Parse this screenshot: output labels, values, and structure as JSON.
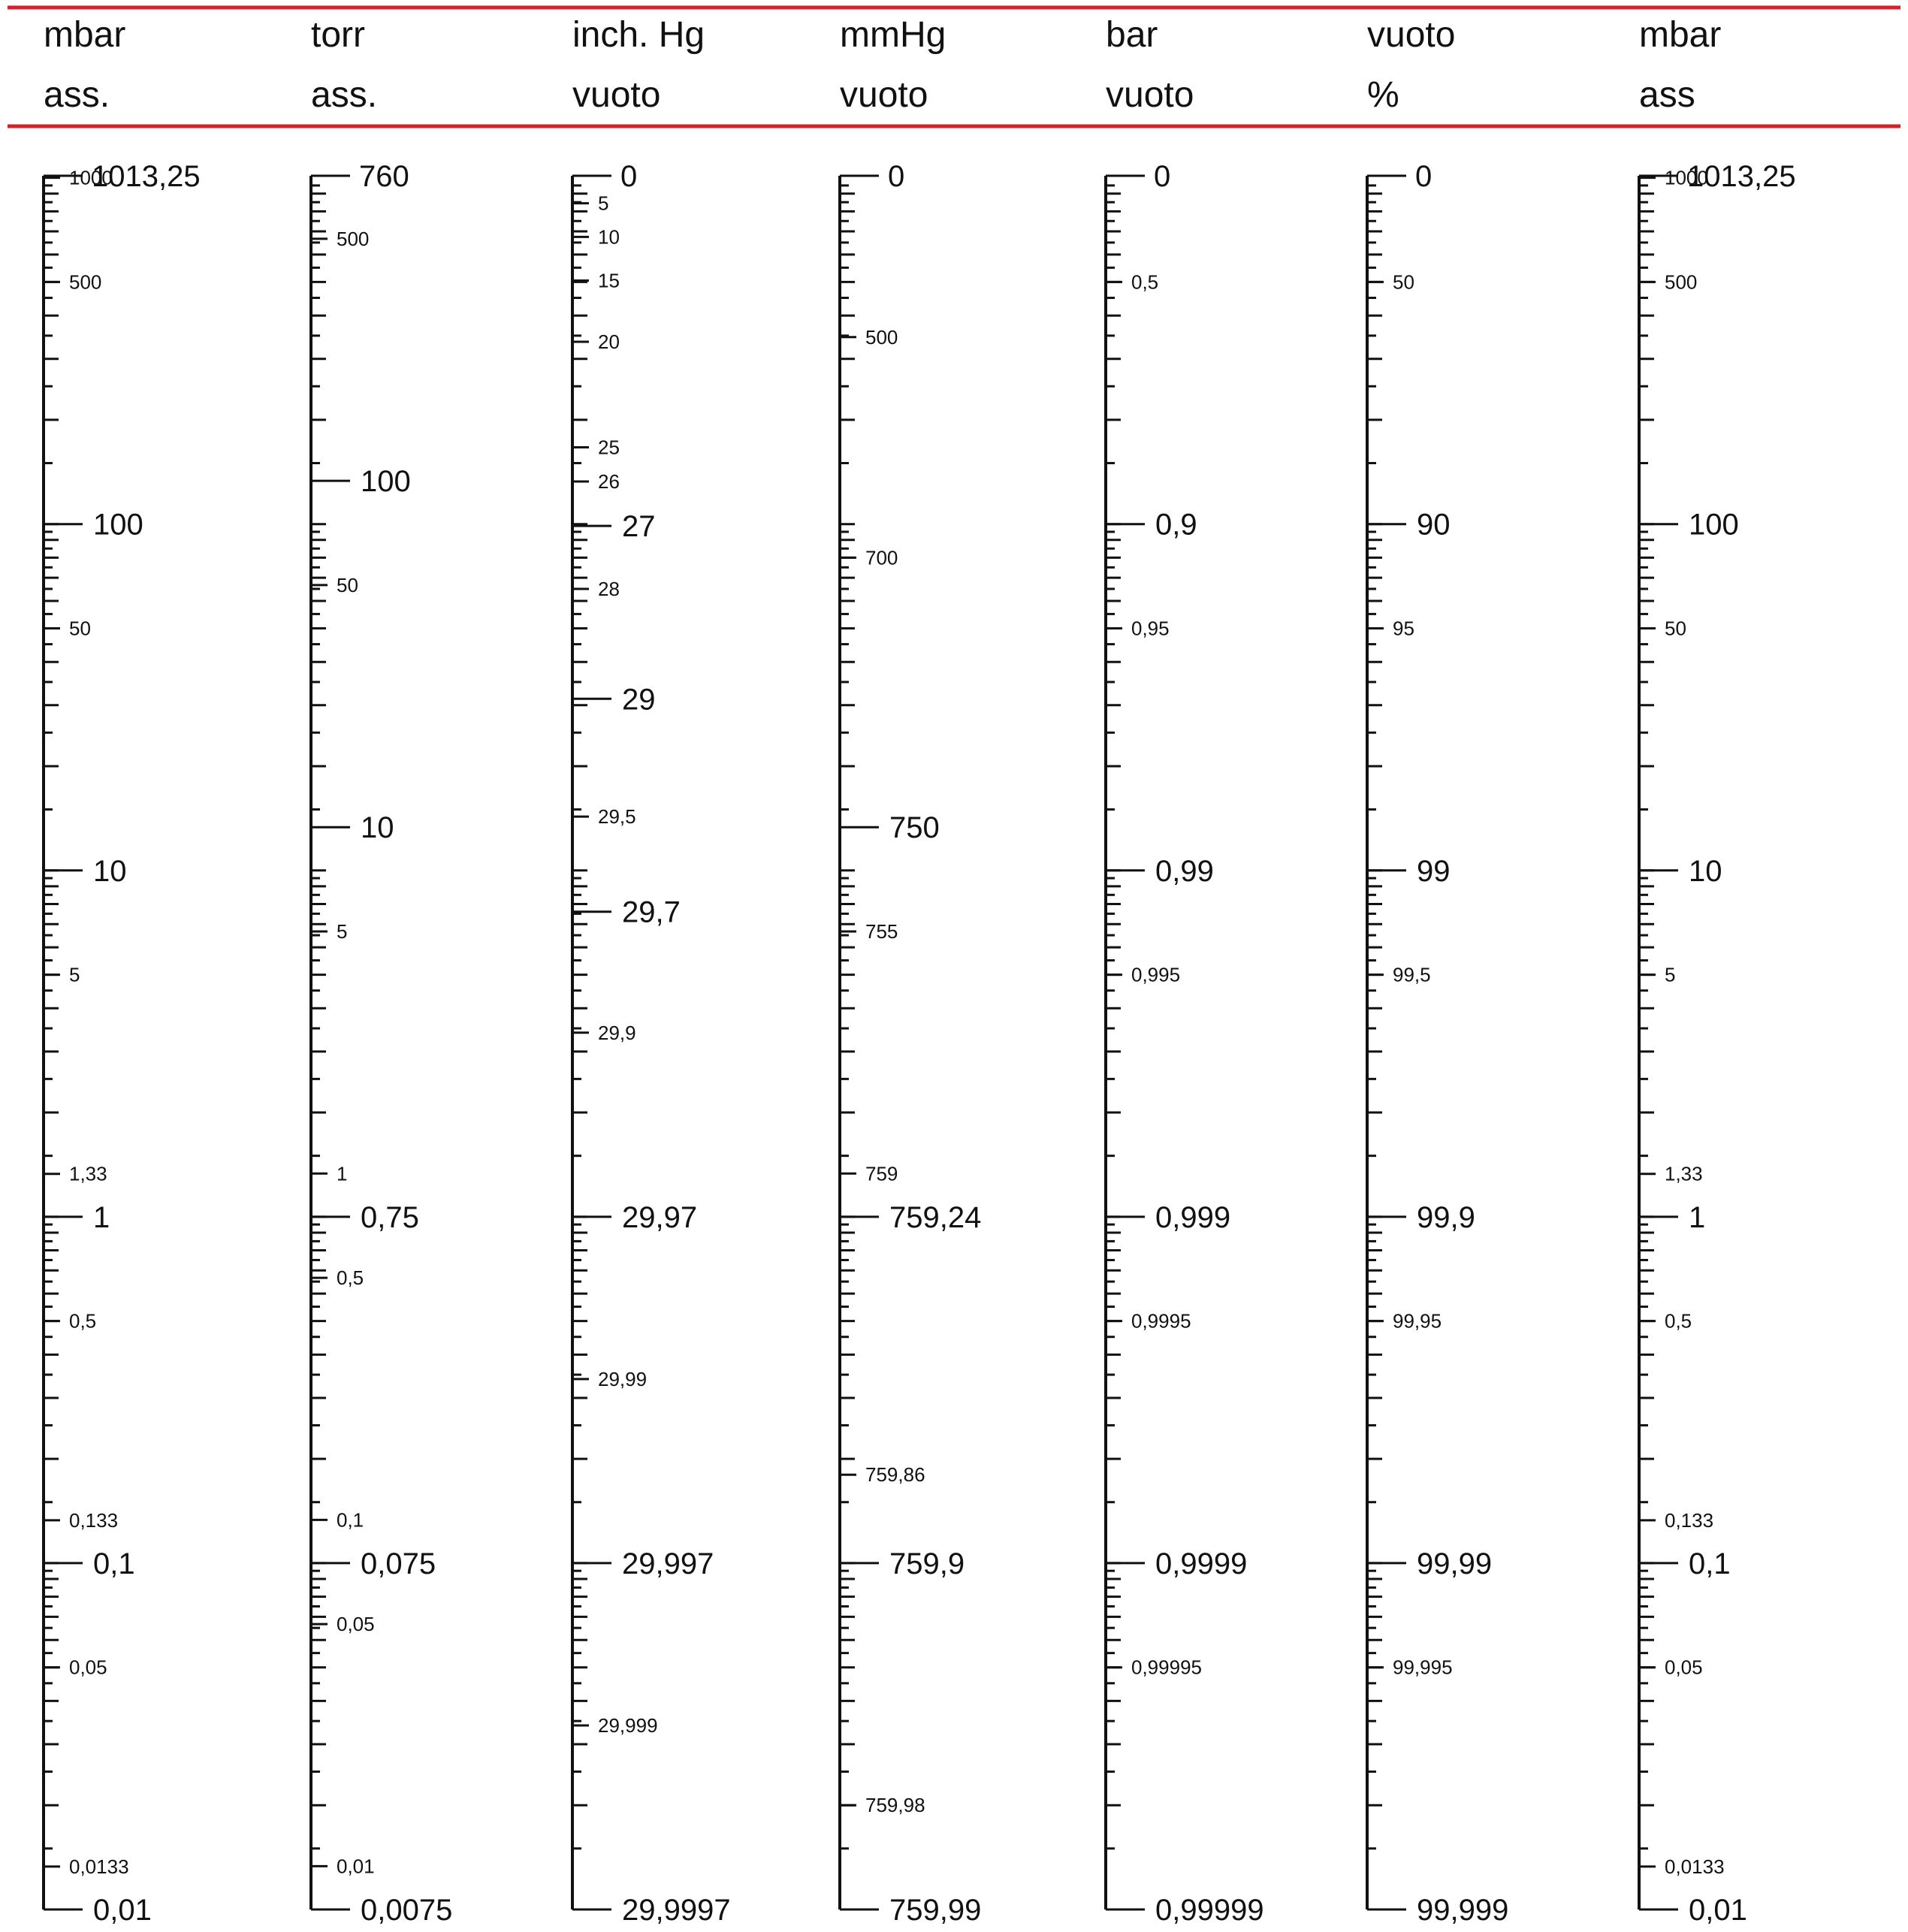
{
  "colors": {
    "rule": "#d6202a",
    "ink": "#111111"
  },
  "chart_data": {
    "type": "nomogram",
    "scales": [
      {
        "id": "mbar-abs-left",
        "header": [
          "mbar",
          "ass."
        ],
        "top_label": "1013,25",
        "major": [
          {
            "label": "100",
            "mbar": 100
          },
          {
            "label": "10",
            "mbar": 10
          },
          {
            "label": "1",
            "mbar": 1
          },
          {
            "label": "0,1",
            "mbar": 0.1
          },
          {
            "label": "0,01",
            "mbar": 0.01
          }
        ],
        "minor": [
          {
            "label": "1000",
            "mbar": 1000
          },
          {
            "label": "500",
            "mbar": 500
          },
          {
            "label": "50",
            "mbar": 50
          },
          {
            "label": "5",
            "mbar": 5
          },
          {
            "label": "1,33",
            "mbar": 1.33
          },
          {
            "label": "0,5",
            "mbar": 0.5
          },
          {
            "label": "0,133",
            "mbar": 0.133
          },
          {
            "label": "0,05",
            "mbar": 0.05
          },
          {
            "label": "0,0133",
            "mbar": 0.0133
          }
        ]
      },
      {
        "id": "torr-abs",
        "header": [
          "torr",
          "ass."
        ],
        "top_label": "760",
        "major": [
          {
            "label": "100",
            "mbar": 133.32
          },
          {
            "label": "10",
            "mbar": 13.332
          },
          {
            "label": "0,75",
            "mbar": 1
          },
          {
            "label": "0,075",
            "mbar": 0.1
          },
          {
            "label": "0,0075",
            "mbar": 0.01
          }
        ],
        "minor": [
          {
            "label": "500",
            "mbar": 666.6
          },
          {
            "label": "50",
            "mbar": 66.66
          },
          {
            "label": "5",
            "mbar": 6.666
          },
          {
            "label": "1",
            "mbar": 1.3332
          },
          {
            "label": "0,5",
            "mbar": 0.6666
          },
          {
            "label": "0,1",
            "mbar": 0.13332
          },
          {
            "label": "0,05",
            "mbar": 0.06666
          },
          {
            "label": "0,01",
            "mbar": 0.013332
          }
        ]
      },
      {
        "id": "inch-hg-vacuum",
        "header": [
          "inch. Hg",
          "vuoto"
        ],
        "top_label": "0",
        "major": [
          {
            "label": "27",
            "mbar": 98.8
          },
          {
            "label": "29",
            "mbar": 31.3
          },
          {
            "label": "29,7",
            "mbar": 7.6
          },
          {
            "label": "29,97",
            "mbar": 1
          },
          {
            "label": "29,997",
            "mbar": 0.1
          },
          {
            "label": "29,9997",
            "mbar": 0.01
          }
        ],
        "minor": [
          {
            "label": "5",
            "mbar": 844
          },
          {
            "label": "10",
            "mbar": 675
          },
          {
            "label": "15",
            "mbar": 505
          },
          {
            "label": "20",
            "mbar": 336
          },
          {
            "label": "25",
            "mbar": 166.6
          },
          {
            "label": "26",
            "mbar": 132.7
          },
          {
            "label": "28",
            "mbar": 65
          },
          {
            "label": "29,5",
            "mbar": 14.3
          },
          {
            "label": "29,9",
            "mbar": 3.4
          },
          {
            "label": "29,99",
            "mbar": 0.34
          },
          {
            "label": "29,999",
            "mbar": 0.034
          }
        ]
      },
      {
        "id": "mmhg-vacuum",
        "header": [
          "mmHg",
          "vuoto"
        ],
        "top_label": "0",
        "major": [
          {
            "label": "750",
            "mbar": 13.33
          },
          {
            "label": "759,24",
            "mbar": 1
          },
          {
            "label": "759,9",
            "mbar": 0.1
          },
          {
            "label": "759,99",
            "mbar": 0.01
          }
        ],
        "minor": [
          {
            "label": "500",
            "mbar": 346.6
          },
          {
            "label": "700",
            "mbar": 79.99
          },
          {
            "label": "755",
            "mbar": 6.666
          },
          {
            "label": "759",
            "mbar": 1.3332
          },
          {
            "label": "759,86",
            "mbar": 0.18
          },
          {
            "label": "759,98",
            "mbar": 0.02
          }
        ]
      },
      {
        "id": "bar-vacuum",
        "header": [
          "bar",
          "vuoto"
        ],
        "top_label": "0",
        "major": [
          {
            "label": "0,9",
            "mbar": 100
          },
          {
            "label": "0,99",
            "mbar": 10
          },
          {
            "label": "0,999",
            "mbar": 1
          },
          {
            "label": "0,9999",
            "mbar": 0.1
          },
          {
            "label": "0,99999",
            "mbar": 0.01
          }
        ],
        "minor": [
          {
            "label": "0,5",
            "mbar": 500
          },
          {
            "label": "0,95",
            "mbar": 50
          },
          {
            "label": "0,995",
            "mbar": 5
          },
          {
            "label": "0,9995",
            "mbar": 0.5
          },
          {
            "label": "0,99995",
            "mbar": 0.05
          }
        ]
      },
      {
        "id": "vacuum-percent",
        "header": [
          "vuoto",
          "%"
        ],
        "top_label": "0",
        "major": [
          {
            "label": "90",
            "mbar": 100
          },
          {
            "label": "99",
            "mbar": 10
          },
          {
            "label": "99,9",
            "mbar": 1
          },
          {
            "label": "99,99",
            "mbar": 0.1
          },
          {
            "label": "99,999",
            "mbar": 0.01
          }
        ],
        "minor": [
          {
            "label": "50",
            "mbar": 500
          },
          {
            "label": "95",
            "mbar": 50
          },
          {
            "label": "99,5",
            "mbar": 5
          },
          {
            "label": "99,95",
            "mbar": 0.5
          },
          {
            "label": "99,995",
            "mbar": 0.05
          }
        ]
      },
      {
        "id": "mbar-abs-right",
        "header": [
          "mbar",
          "ass"
        ],
        "top_label": "1013,25",
        "major": [
          {
            "label": "100",
            "mbar": 100
          },
          {
            "label": "10",
            "mbar": 10
          },
          {
            "label": "1",
            "mbar": 1
          },
          {
            "label": "0,1",
            "mbar": 0.1
          },
          {
            "label": "0,01",
            "mbar": 0.01
          }
        ],
        "minor": [
          {
            "label": "1000",
            "mbar": 1000
          },
          {
            "label": "500",
            "mbar": 500
          },
          {
            "label": "50",
            "mbar": 50
          },
          {
            "label": "5",
            "mbar": 5
          },
          {
            "label": "1,33",
            "mbar": 1.33
          },
          {
            "label": "0,5",
            "mbar": 0.5
          },
          {
            "label": "0,133",
            "mbar": 0.133
          },
          {
            "label": "0,05",
            "mbar": 0.05
          },
          {
            "label": "0,0133",
            "mbar": 0.0133
          }
        ]
      }
    ]
  }
}
